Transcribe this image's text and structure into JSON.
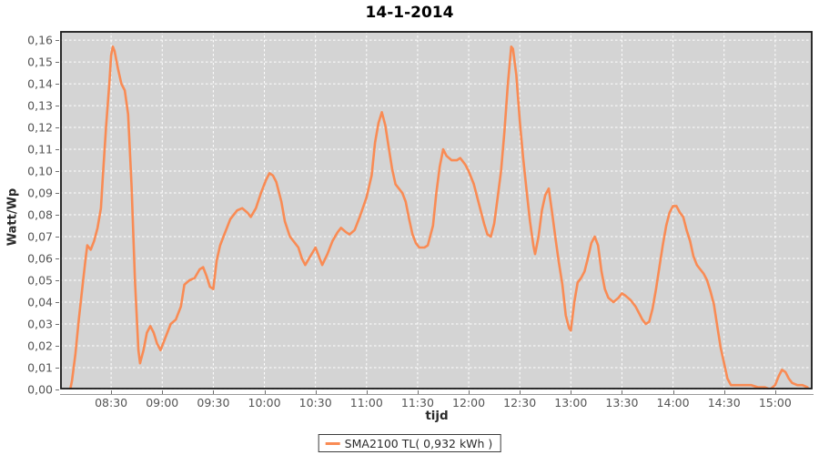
{
  "title": "14-1-2014",
  "colors": {
    "series": "#F98B54",
    "plot_background": "#D4D4D4",
    "gridline": "#FFFFFF",
    "plot_border": "#1A1A1A",
    "tick_label": "#545454",
    "axis_label": "#2B2B2B",
    "outer_background": "#FFFFFF"
  },
  "legend": {
    "label": "SMA2100 TL( 0,932 kWh )"
  },
  "axes": {
    "y_label": "Watt/Wp",
    "x_label": "tijd"
  },
  "chart_data": {
    "type": "line",
    "title": "14-1-2014",
    "xlabel": "tijd",
    "ylabel": "Watt/Wp",
    "legend_position": "bottom-center",
    "grid": "white dashed lines on gray plot background",
    "xlim": [
      "08:00",
      "15:22"
    ],
    "ylim": [
      0,
      0.1642
    ],
    "x_ticks": [
      "08:30",
      "09:00",
      "09:30",
      "10:00",
      "10:30",
      "11:00",
      "11:30",
      "12:00",
      "12:30",
      "13:00",
      "13:30",
      "14:00",
      "14:30",
      "15:00"
    ],
    "y_tick_values": [
      0,
      0.01,
      0.02,
      0.03,
      0.04,
      0.05,
      0.06,
      0.07,
      0.08,
      0.09,
      0.1,
      0.11,
      0.12,
      0.13,
      0.14,
      0.15,
      0.16
    ],
    "y_tick_labels": [
      "0,00",
      "0,01",
      "0,02",
      "0,03",
      "0,04",
      "0,05",
      "0,06",
      "0,07",
      "0,08",
      "0,09",
      "0,10",
      "0,11",
      "0,12",
      "0,13",
      "0,14",
      "0,15",
      "0,16"
    ],
    "series": [
      {
        "name": "SMA2100 TL( 0,932 kWh )",
        "color": "#F98B54",
        "points": [
          [
            "08:06",
            0.0
          ],
          [
            "08:07",
            0.004
          ],
          [
            "08:09",
            0.016
          ],
          [
            "08:11",
            0.032
          ],
          [
            "08:13",
            0.046
          ],
          [
            "08:15",
            0.06
          ],
          [
            "08:16",
            0.066
          ],
          [
            "08:18",
            0.064
          ],
          [
            "08:20",
            0.068
          ],
          [
            "08:22",
            0.074
          ],
          [
            "08:24",
            0.083
          ],
          [
            "08:25",
            0.096
          ],
          [
            "08:27",
            0.12
          ],
          [
            "08:29",
            0.141
          ],
          [
            "08:30",
            0.153
          ],
          [
            "08:31",
            0.157
          ],
          [
            "08:32",
            0.155
          ],
          [
            "08:34",
            0.147
          ],
          [
            "08:36",
            0.14
          ],
          [
            "08:38",
            0.137
          ],
          [
            "08:40",
            0.126
          ],
          [
            "08:42",
            0.093
          ],
          [
            "08:44",
            0.05
          ],
          [
            "08:46",
            0.018
          ],
          [
            "08:47",
            0.012
          ],
          [
            "08:49",
            0.018
          ],
          [
            "08:51",
            0.026
          ],
          [
            "08:53",
            0.029
          ],
          [
            "08:55",
            0.026
          ],
          [
            "08:57",
            0.021
          ],
          [
            "08:59",
            0.018
          ],
          [
            "09:02",
            0.024
          ],
          [
            "09:05",
            0.03
          ],
          [
            "09:08",
            0.032
          ],
          [
            "09:11",
            0.038
          ],
          [
            "09:13",
            0.048
          ],
          [
            "09:16",
            0.05
          ],
          [
            "09:19",
            0.051
          ],
          [
            "09:22",
            0.055
          ],
          [
            "09:24",
            0.056
          ],
          [
            "09:26",
            0.052
          ],
          [
            "09:28",
            0.047
          ],
          [
            "09:30",
            0.046
          ],
          [
            "09:32",
            0.059
          ],
          [
            "09:34",
            0.066
          ],
          [
            "09:36",
            0.07
          ],
          [
            "09:40",
            0.078
          ],
          [
            "09:44",
            0.082
          ],
          [
            "09:47",
            0.083
          ],
          [
            "09:50",
            0.081
          ],
          [
            "09:52",
            0.079
          ],
          [
            "09:55",
            0.083
          ],
          [
            "09:58",
            0.09
          ],
          [
            "10:01",
            0.096
          ],
          [
            "10:03",
            0.099
          ],
          [
            "10:05",
            0.098
          ],
          [
            "10:07",
            0.095
          ],
          [
            "10:10",
            0.086
          ],
          [
            "10:12",
            0.077
          ],
          [
            "10:15",
            0.07
          ],
          [
            "10:18",
            0.067
          ],
          [
            "10:20",
            0.065
          ],
          [
            "10:22",
            0.06
          ],
          [
            "10:24",
            0.057
          ],
          [
            "10:27",
            0.061
          ],
          [
            "10:30",
            0.065
          ],
          [
            "10:32",
            0.061
          ],
          [
            "10:34",
            0.057
          ],
          [
            "10:37",
            0.062
          ],
          [
            "10:40",
            0.068
          ],
          [
            "10:43",
            0.072
          ],
          [
            "10:45",
            0.074
          ],
          [
            "10:48",
            0.072
          ],
          [
            "10:50",
            0.071
          ],
          [
            "10:53",
            0.073
          ],
          [
            "10:56",
            0.079
          ],
          [
            "11:00",
            0.088
          ],
          [
            "11:03",
            0.098
          ],
          [
            "11:05",
            0.113
          ],
          [
            "11:07",
            0.122
          ],
          [
            "11:09",
            0.127
          ],
          [
            "11:11",
            0.121
          ],
          [
            "11:13",
            0.111
          ],
          [
            "11:15",
            0.101
          ],
          [
            "11:17",
            0.094
          ],
          [
            "11:19",
            0.092
          ],
          [
            "11:21",
            0.09
          ],
          [
            "11:23",
            0.086
          ],
          [
            "11:25",
            0.078
          ],
          [
            "11:27",
            0.071
          ],
          [
            "11:29",
            0.067
          ],
          [
            "11:31",
            0.065
          ],
          [
            "11:34",
            0.065
          ],
          [
            "11:36",
            0.066
          ],
          [
            "11:39",
            0.075
          ],
          [
            "11:41",
            0.09
          ],
          [
            "11:43",
            0.102
          ],
          [
            "11:45",
            0.11
          ],
          [
            "11:47",
            0.107
          ],
          [
            "11:50",
            0.105
          ],
          [
            "11:53",
            0.105
          ],
          [
            "11:55",
            0.106
          ],
          [
            "11:58",
            0.103
          ],
          [
            "12:00",
            0.1
          ],
          [
            "12:03",
            0.094
          ],
          [
            "12:06",
            0.085
          ],
          [
            "12:09",
            0.076
          ],
          [
            "12:11",
            0.071
          ],
          [
            "12:13",
            0.07
          ],
          [
            "12:15",
            0.076
          ],
          [
            "12:17",
            0.088
          ],
          [
            "12:19",
            0.1
          ],
          [
            "12:21",
            0.118
          ],
          [
            "12:23",
            0.14
          ],
          [
            "12:25",
            0.157
          ],
          [
            "12:26",
            0.156
          ],
          [
            "12:28",
            0.144
          ],
          [
            "12:30",
            0.123
          ],
          [
            "12:32",
            0.106
          ],
          [
            "12:34",
            0.091
          ],
          [
            "12:36",
            0.077
          ],
          [
            "12:38",
            0.066
          ],
          [
            "12:39",
            0.062
          ],
          [
            "12:41",
            0.07
          ],
          [
            "12:43",
            0.082
          ],
          [
            "12:45",
            0.089
          ],
          [
            "12:47",
            0.092
          ],
          [
            "12:49",
            0.081
          ],
          [
            "12:51",
            0.069
          ],
          [
            "12:53",
            0.058
          ],
          [
            "12:55",
            0.048
          ],
          [
            "12:57",
            0.034
          ],
          [
            "12:59",
            0.028
          ],
          [
            "13:00",
            0.027
          ],
          [
            "13:02",
            0.04
          ],
          [
            "13:04",
            0.049
          ],
          [
            "13:06",
            0.051
          ],
          [
            "13:08",
            0.054
          ],
          [
            "13:10",
            0.06
          ],
          [
            "13:12",
            0.067
          ],
          [
            "13:14",
            0.07
          ],
          [
            "13:16",
            0.066
          ],
          [
            "13:18",
            0.054
          ],
          [
            "13:20",
            0.046
          ],
          [
            "13:22",
            0.042
          ],
          [
            "13:25",
            0.04
          ],
          [
            "13:28",
            0.042
          ],
          [
            "13:30",
            0.044
          ],
          [
            "13:32",
            0.043
          ],
          [
            "13:35",
            0.041
          ],
          [
            "13:38",
            0.038
          ],
          [
            "13:40",
            0.035
          ],
          [
            "13:42",
            0.032
          ],
          [
            "13:44",
            0.03
          ],
          [
            "13:46",
            0.031
          ],
          [
            "13:48",
            0.037
          ],
          [
            "13:50",
            0.046
          ],
          [
            "13:52",
            0.056
          ],
          [
            "13:54",
            0.066
          ],
          [
            "13:56",
            0.075
          ],
          [
            "13:58",
            0.081
          ],
          [
            "14:00",
            0.084
          ],
          [
            "14:02",
            0.084
          ],
          [
            "14:04",
            0.081
          ],
          [
            "14:06",
            0.079
          ],
          [
            "14:08",
            0.073
          ],
          [
            "14:10",
            0.068
          ],
          [
            "14:12",
            0.061
          ],
          [
            "14:14",
            0.057
          ],
          [
            "14:16",
            0.055
          ],
          [
            "14:18",
            0.053
          ],
          [
            "14:20",
            0.05
          ],
          [
            "14:22",
            0.045
          ],
          [
            "14:24",
            0.039
          ],
          [
            "14:26",
            0.029
          ],
          [
            "14:28",
            0.019
          ],
          [
            "14:30",
            0.012
          ],
          [
            "14:32",
            0.005
          ],
          [
            "14:34",
            0.002
          ],
          [
            "14:38",
            0.002
          ],
          [
            "14:42",
            0.002
          ],
          [
            "14:46",
            0.002
          ],
          [
            "14:50",
            0.001
          ],
          [
            "14:54",
            0.001
          ],
          [
            "14:57",
            0.0
          ],
          [
            "15:00",
            0.002
          ],
          [
            "15:02",
            0.006
          ],
          [
            "15:04",
            0.009
          ],
          [
            "15:06",
            0.008
          ],
          [
            "15:08",
            0.005
          ],
          [
            "15:10",
            0.003
          ],
          [
            "15:13",
            0.002
          ],
          [
            "15:16",
            0.002
          ],
          [
            "15:19",
            0.001
          ]
        ]
      }
    ]
  }
}
